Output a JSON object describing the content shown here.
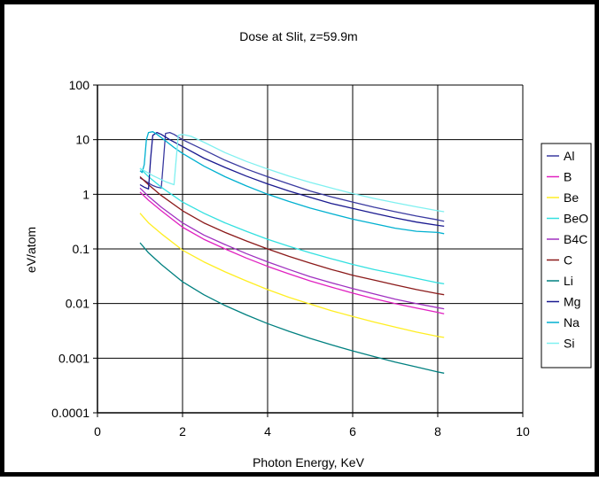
{
  "chart_data": {
    "type": "line",
    "title": "Dose at Slit, z=59.9m",
    "xlabel": "Photon Energy, KeV",
    "ylabel": "eV/atom",
    "x_scale": "linear",
    "y_scale": "log",
    "xlim": [
      0,
      10
    ],
    "ylim": [
      0.0001,
      100
    ],
    "x_ticks": [
      "0",
      "2",
      "4",
      "6",
      "8",
      "10"
    ],
    "y_ticks": [
      "0.0001",
      "0.001",
      "0.01",
      "0.1",
      "1",
      "10",
      "100"
    ],
    "grid": true,
    "legend_position": "right",
    "series": [
      {
        "name": "Al",
        "color": "#3a3aa0",
        "x": [
          1.0,
          1.1,
          1.2,
          1.3,
          1.4,
          1.5,
          1.55,
          1.6,
          1.7,
          1.8,
          2.0,
          2.5,
          3,
          3.5,
          4,
          4.5,
          5,
          5.5,
          6,
          6.5,
          7,
          7.5,
          8,
          8.15
        ],
        "y": [
          2.0,
          1.8,
          1.6,
          1.45,
          1.35,
          1.3,
          4.0,
          13,
          13.5,
          12.5,
          10,
          6.5,
          4.2,
          2.9,
          2.1,
          1.55,
          1.15,
          0.9,
          0.72,
          0.58,
          0.48,
          0.4,
          0.34,
          0.32
        ]
      },
      {
        "name": "B",
        "color": "#e020c0",
        "x": [
          1.0,
          1.2,
          1.5,
          2,
          2.5,
          3,
          3.5,
          4,
          4.5,
          5,
          5.5,
          6,
          6.5,
          7,
          7.5,
          8,
          8.15
        ],
        "y": [
          1.1,
          0.78,
          0.5,
          0.25,
          0.15,
          0.1,
          0.068,
          0.048,
          0.035,
          0.026,
          0.02,
          0.0155,
          0.0123,
          0.01,
          0.0083,
          0.0069,
          0.0065
        ]
      },
      {
        "name": "Be",
        "color": "#ffee22",
        "x": [
          1.0,
          1.2,
          1.5,
          2,
          2.5,
          3,
          3.5,
          4,
          4.5,
          5,
          5.5,
          6,
          6.5,
          7,
          7.5,
          8,
          8.15
        ],
        "y": [
          0.45,
          0.3,
          0.19,
          0.095,
          0.058,
          0.038,
          0.026,
          0.018,
          0.013,
          0.0098,
          0.0074,
          0.0058,
          0.0046,
          0.0037,
          0.003,
          0.0025,
          0.0024
        ]
      },
      {
        "name": "BeO",
        "color": "#33e0e0",
        "x": [
          1.0,
          1.2,
          1.5,
          2,
          2.5,
          3,
          3.5,
          4,
          4.5,
          5,
          5.5,
          6,
          6.5,
          7,
          7.5,
          8,
          8.15
        ],
        "y": [
          3.0,
          2.1,
          1.35,
          0.72,
          0.45,
          0.3,
          0.21,
          0.15,
          0.112,
          0.085,
          0.066,
          0.052,
          0.042,
          0.035,
          0.029,
          0.024,
          0.023
        ]
      },
      {
        "name": "B4C",
        "color": "#a030c0",
        "x": [
          1.0,
          1.2,
          1.5,
          2,
          2.5,
          3,
          3.5,
          4,
          4.5,
          5,
          5.5,
          6,
          6.5,
          7,
          7.5,
          8,
          8.15
        ],
        "y": [
          1.3,
          0.92,
          0.58,
          0.3,
          0.18,
          0.12,
          0.082,
          0.058,
          0.042,
          0.031,
          0.024,
          0.0188,
          0.015,
          0.012,
          0.01,
          0.0084,
          0.008
        ]
      },
      {
        "name": "C",
        "color": "#8b1a1a",
        "x": [
          1.0,
          1.2,
          1.5,
          2,
          2.5,
          3,
          3.5,
          4,
          4.5,
          5,
          5.5,
          6,
          6.5,
          7,
          7.5,
          8,
          8.15
        ],
        "y": [
          2.1,
          1.5,
          0.95,
          0.5,
          0.3,
          0.2,
          0.14,
          0.1,
          0.073,
          0.055,
          0.042,
          0.033,
          0.027,
          0.022,
          0.018,
          0.0152,
          0.0145
        ]
      },
      {
        "name": "Li",
        "color": "#008080",
        "x": [
          1.0,
          1.2,
          1.5,
          2,
          2.5,
          3,
          3.5,
          4,
          4.5,
          5,
          5.5,
          6,
          6.5,
          7,
          7.5,
          8,
          8.15
        ],
        "y": [
          0.13,
          0.085,
          0.052,
          0.025,
          0.0145,
          0.0092,
          0.0062,
          0.0043,
          0.0031,
          0.0023,
          0.00175,
          0.00136,
          0.00107,
          0.00085,
          0.00069,
          0.00056,
          0.00053
        ]
      },
      {
        "name": "Mg",
        "color": "#1a1a90",
        "x": [
          1.0,
          1.1,
          1.2,
          1.25,
          1.3,
          1.4,
          1.5,
          1.7,
          2.0,
          2.5,
          3,
          3.5,
          4,
          4.5,
          5,
          5.5,
          6,
          6.5,
          7,
          7.5,
          8,
          8.15
        ],
        "y": [
          1.5,
          1.35,
          1.25,
          4.5,
          12,
          13.5,
          12.5,
          10,
          7.5,
          4.6,
          3.1,
          2.15,
          1.55,
          1.15,
          0.88,
          0.68,
          0.55,
          0.45,
          0.37,
          0.31,
          0.27,
          0.26
        ]
      },
      {
        "name": "Na",
        "color": "#00b0d0",
        "x": [
          1.0,
          1.05,
          1.1,
          1.15,
          1.2,
          1.3,
          1.4,
          1.6,
          1.8,
          2.0,
          2.5,
          3,
          3.5,
          4,
          4.5,
          5,
          5.5,
          6,
          6.5,
          7,
          7.5,
          8,
          8.15
        ],
        "y": [
          2.7,
          2.5,
          3.5,
          10,
          13.5,
          14,
          12.5,
          9.5,
          7.2,
          5.6,
          3.3,
          2.1,
          1.42,
          1.0,
          0.74,
          0.56,
          0.44,
          0.35,
          0.29,
          0.24,
          0.21,
          0.2,
          0.19
        ]
      },
      {
        "name": "Si",
        "color": "#7ff0f0",
        "x": [
          1.0,
          1.3,
          1.6,
          1.8,
          1.84,
          1.9,
          2.0,
          2.2,
          2.5,
          3,
          3.5,
          4,
          4.5,
          5,
          5.5,
          6,
          6.5,
          7,
          7.5,
          8,
          8.15
        ],
        "y": [
          3.0,
          2.2,
          1.7,
          1.5,
          3.5,
          12,
          12.5,
          11.5,
          9,
          5.8,
          4.0,
          2.9,
          2.15,
          1.65,
          1.3,
          1.03,
          0.84,
          0.7,
          0.59,
          0.5,
          0.48
        ]
      }
    ]
  }
}
